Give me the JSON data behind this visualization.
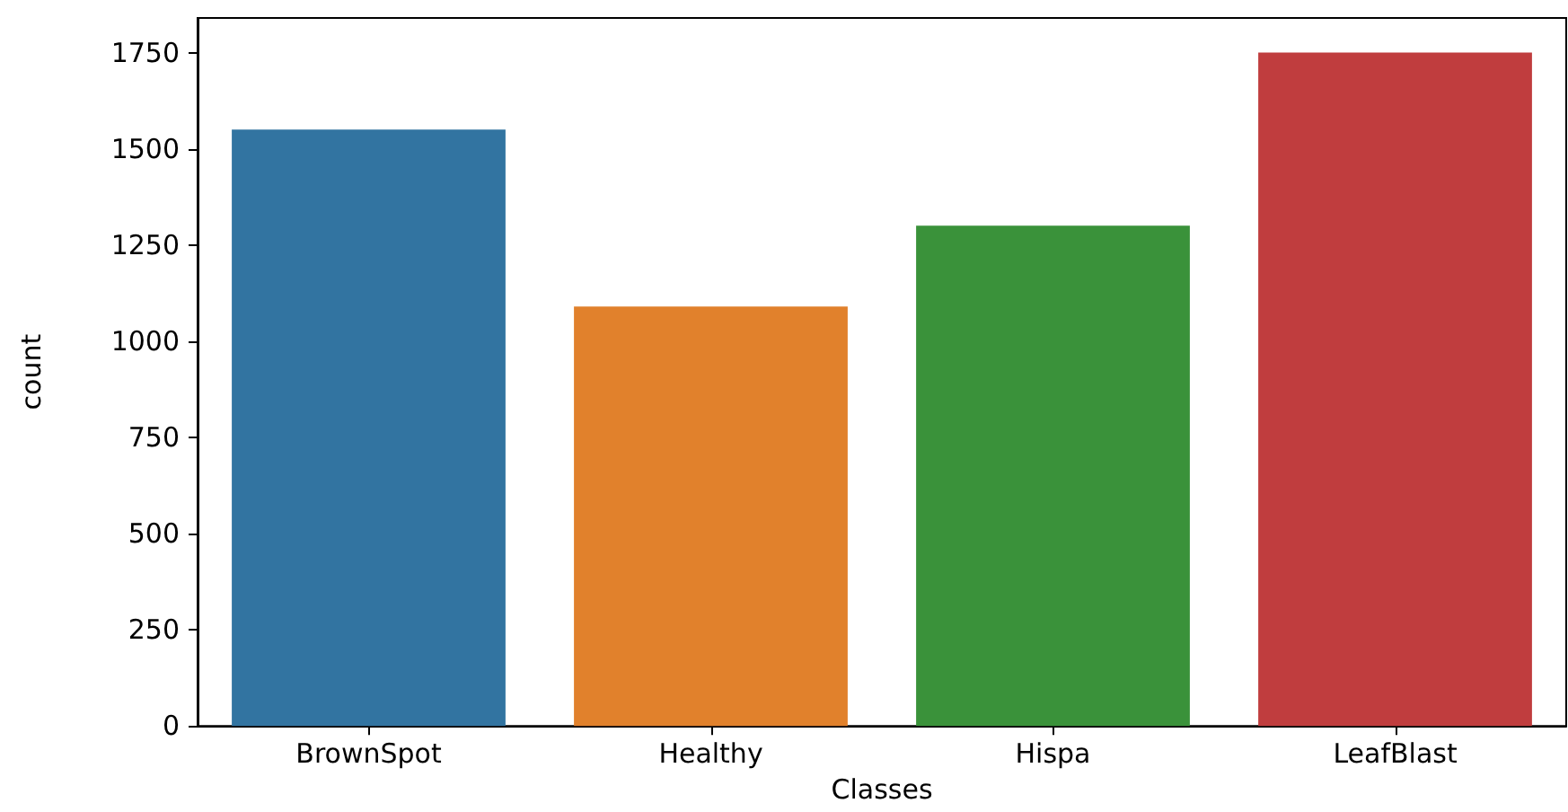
{
  "chart_data": {
    "type": "bar",
    "categories": [
      "BrownSpot",
      "Healthy",
      "Hispa",
      "LeafBlast"
    ],
    "values": [
      1550,
      1090,
      1300,
      1750
    ],
    "colors": [
      "#3274a1",
      "#e1812c",
      "#3a923a",
      "#c03d3e"
    ],
    "xlabel": "Classes",
    "ylabel": "count",
    "ylim": [
      0,
      1840
    ],
    "yticks": [
      0,
      250,
      500,
      750,
      1000,
      1250,
      1500,
      1750
    ],
    "grid": false
  }
}
